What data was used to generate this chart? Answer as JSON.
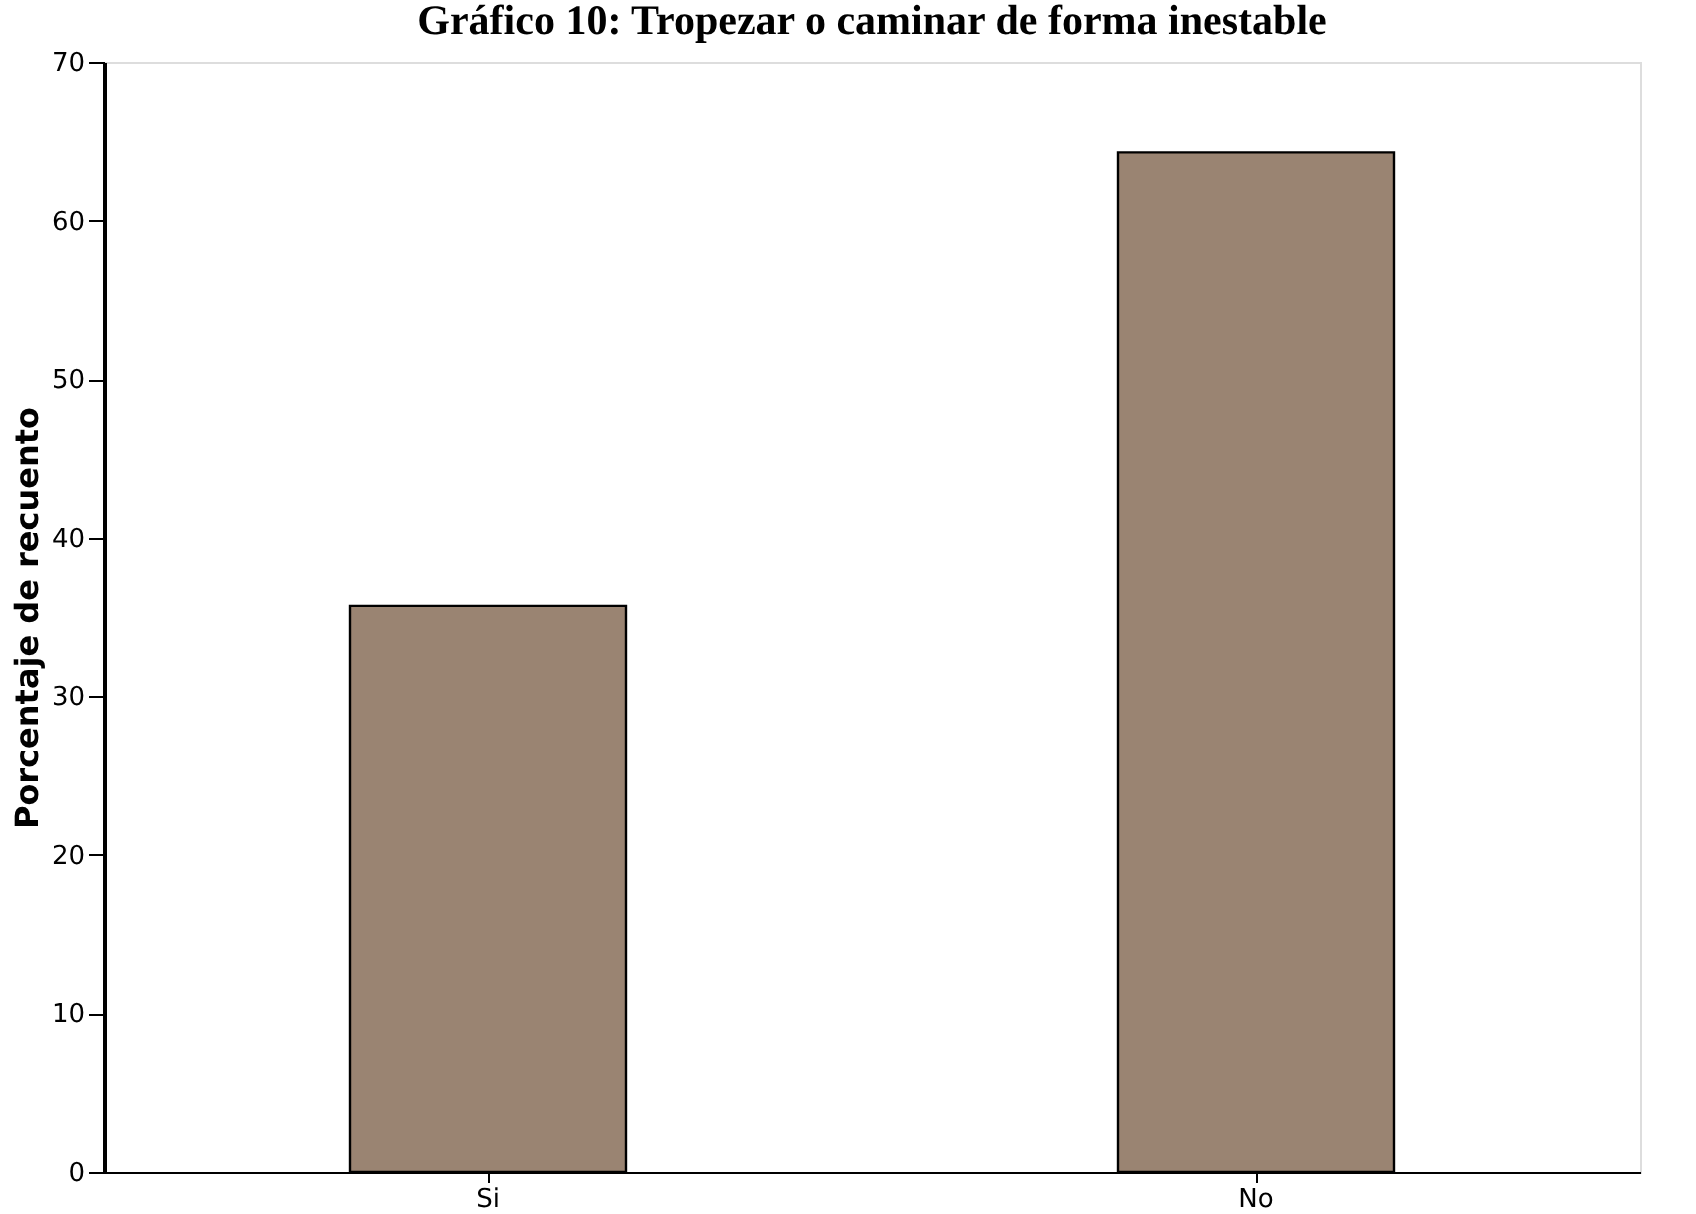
{
  "chart_data": {
    "type": "bar",
    "title": "Gráfico 10: Tropezar o caminar de forma inestable",
    "ylabel": "Porcentaje de recuento",
    "categories": [
      "Si",
      "No"
    ],
    "values": [
      35.7,
      64.3
    ],
    "color": "#9a8472",
    "ylim": [
      0,
      70
    ],
    "yticks": [
      0,
      10,
      20,
      30,
      40,
      50,
      60,
      70
    ],
    "grid": false
  }
}
